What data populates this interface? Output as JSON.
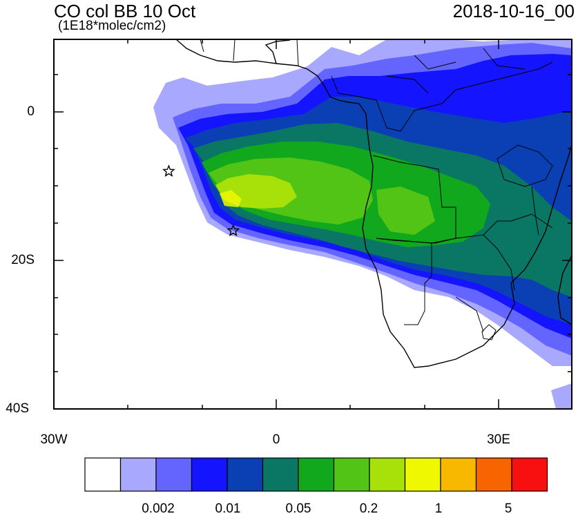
{
  "header": {
    "title": "CO col BB 10 Oct",
    "units": "(1E18*molec/cm2)",
    "datetime": "2018-10-16_00"
  },
  "axes": {
    "lat_labels": [
      "0",
      "20S",
      "40S"
    ],
    "lon_labels": [
      "30W",
      "0",
      "30E"
    ]
  },
  "markers": [
    {
      "name": "star-marker",
      "lon": -14.5,
      "lat": -8.0
    },
    {
      "name": "star-marker",
      "lon": -5.8,
      "lat": -16.0
    }
  ],
  "colorbar": {
    "colors": [
      "#ffffff",
      "#a8a8ff",
      "#6464ff",
      "#1414ff",
      "#0a40b4",
      "#0a7664",
      "#12a81e",
      "#52c416",
      "#a8e00a",
      "#f0f800",
      "#f8b800",
      "#f86400",
      "#f81010"
    ],
    "labels": [
      "0.002",
      "0.01",
      "0.05",
      "0.2",
      "1",
      "5"
    ]
  }
}
